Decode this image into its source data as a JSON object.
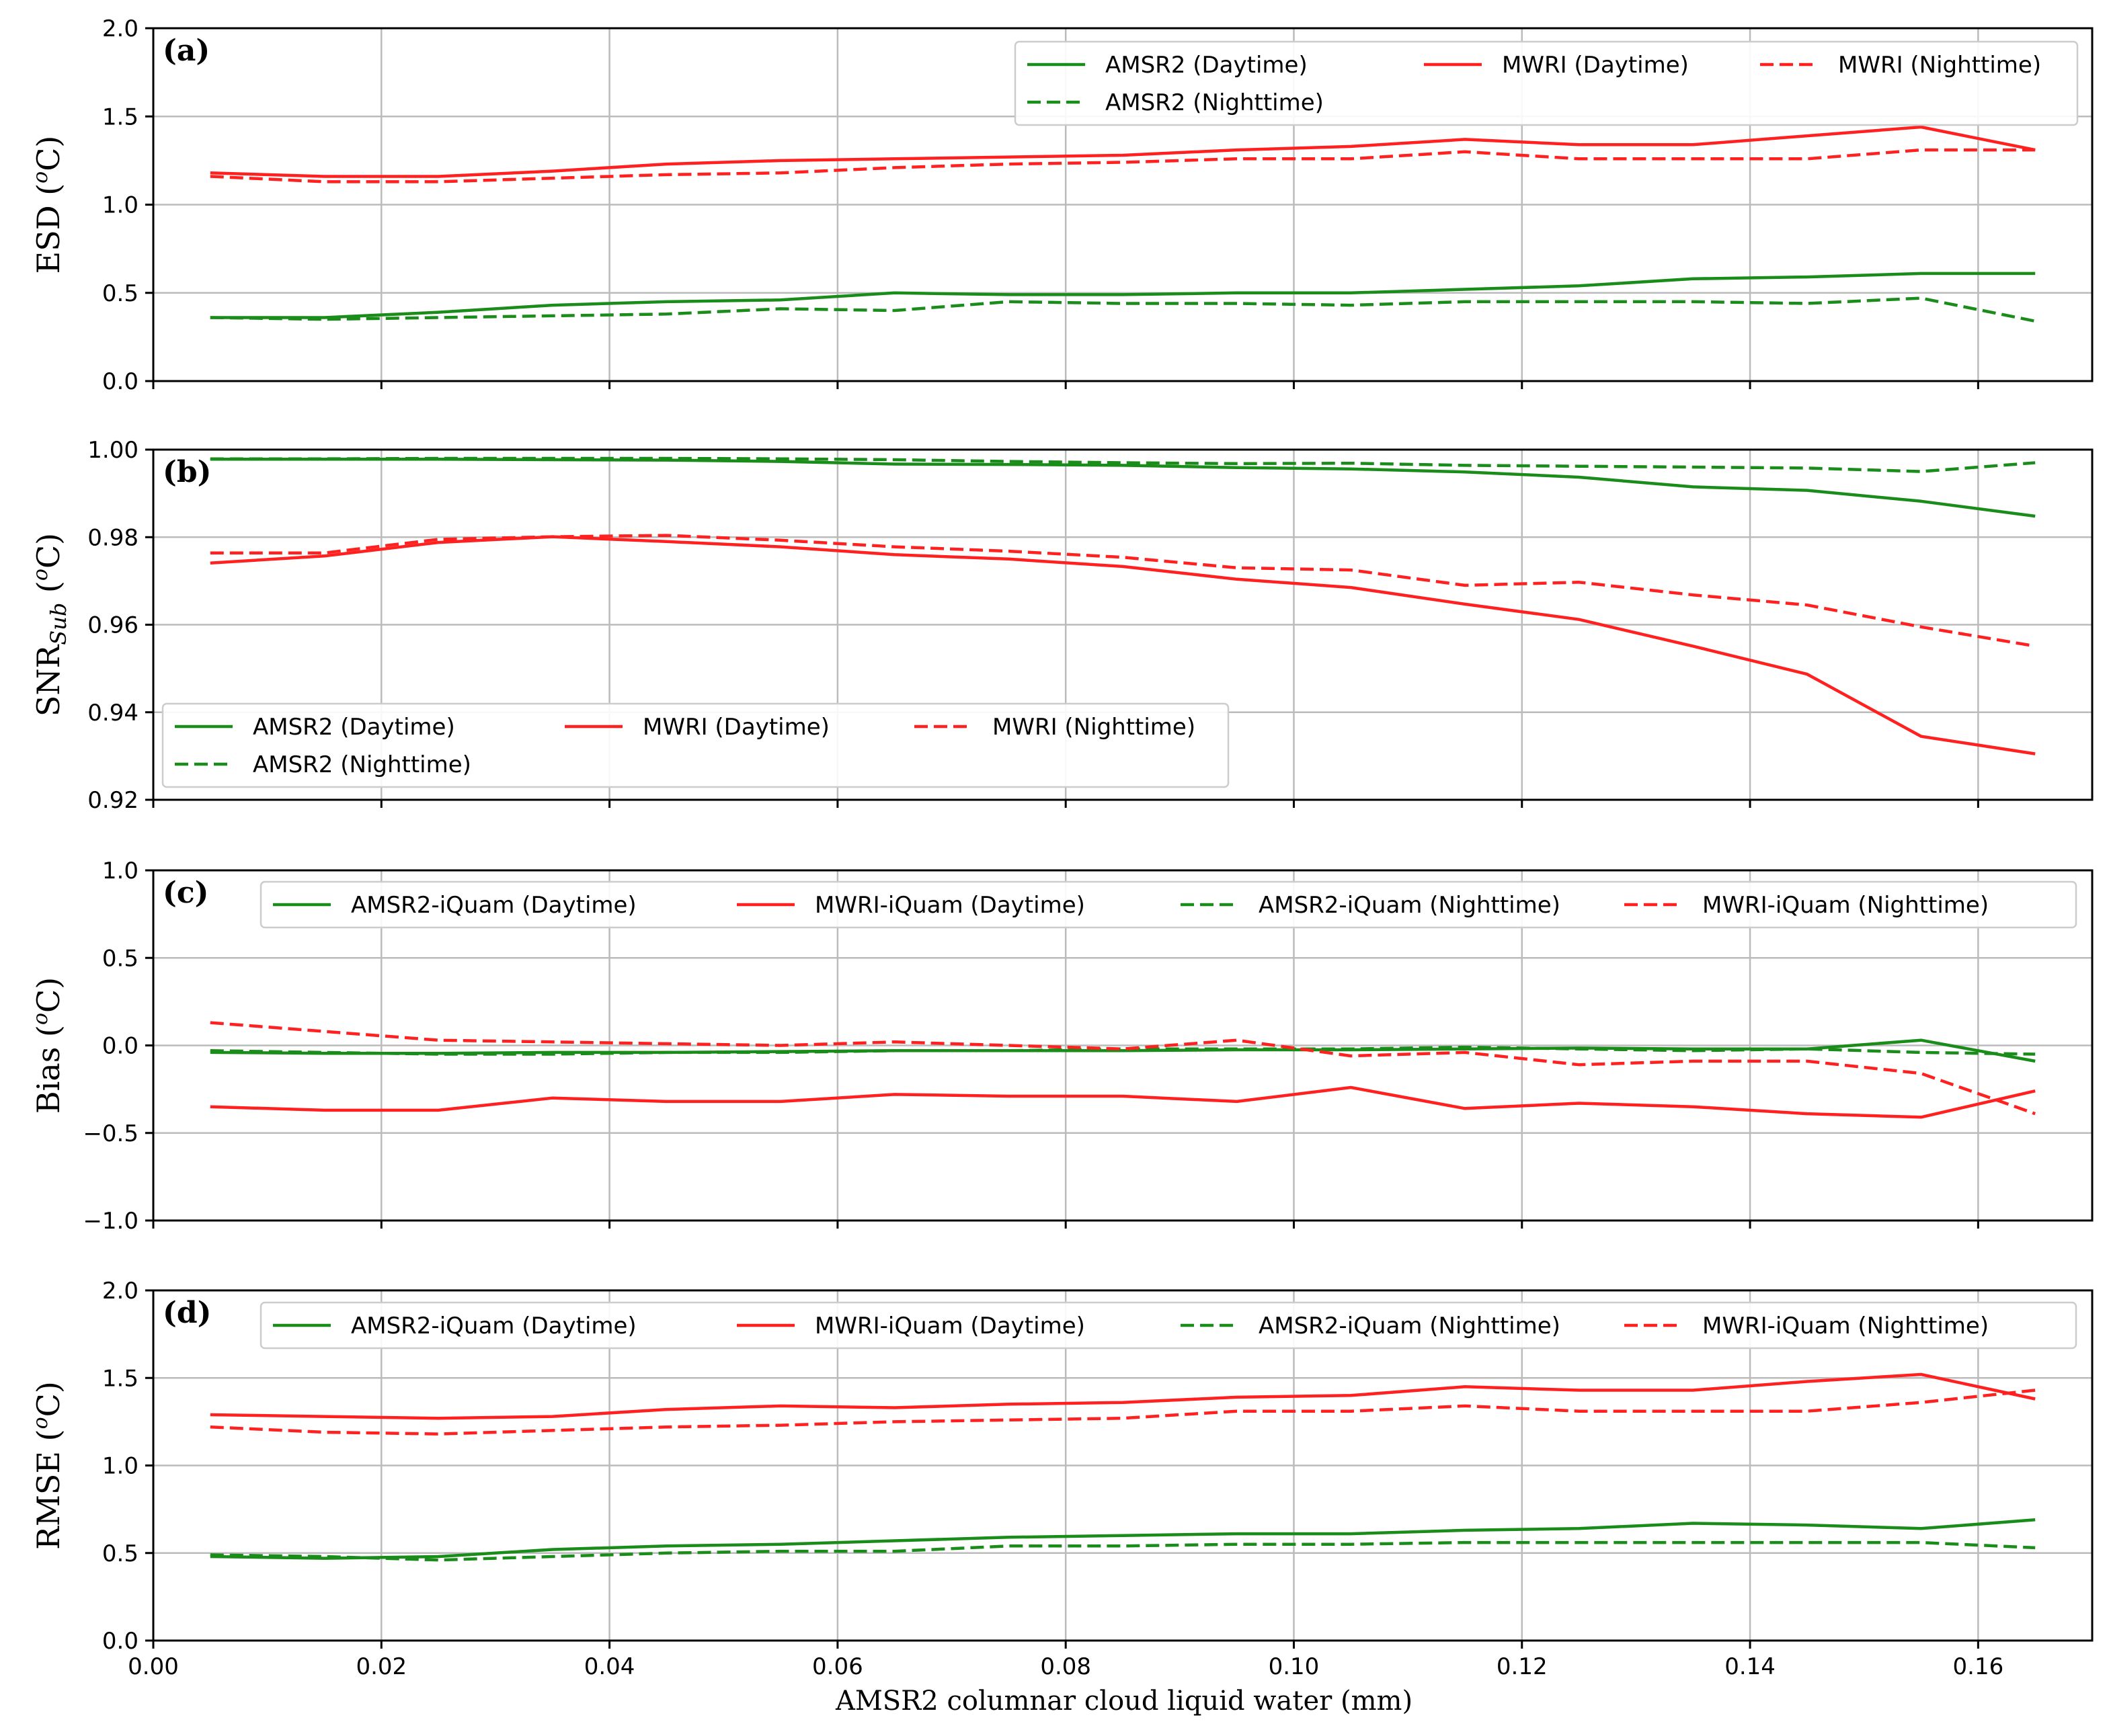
{
  "figure": {
    "xlabel": "AMSR2 columnar cloud liquid water (mm)"
  },
  "colors": {
    "green": "#1a8c1a",
    "red": "#ff2020"
  },
  "chart_data": [
    {
      "type": "line",
      "panel_label": "(a)",
      "ylabel_main": "ESD (",
      "ylabel_sup": "o",
      "ylabel_tail": "C)",
      "ylabel_sub": "",
      "xlim": [
        0.0,
        0.17
      ],
      "ylim": [
        0.0,
        2.0
      ],
      "x_ticks": [
        "0.00",
        "0.02",
        "0.04",
        "0.06",
        "0.08",
        "0.10",
        "0.12",
        "0.14",
        "0.16"
      ],
      "y_ticks": [
        0.0,
        0.5,
        1.0,
        1.5,
        2.0
      ],
      "y_tick_labels": [
        "0.0",
        "0.5",
        "1.0",
        "1.5",
        "2.0"
      ],
      "legend_position": "top-right",
      "legend_cols": 3,
      "legend_order": [
        0,
        2,
        3,
        1
      ],
      "x": [
        0.005,
        0.015,
        0.025,
        0.035,
        0.045,
        0.055,
        0.065,
        0.075,
        0.085,
        0.095,
        0.105,
        0.115,
        0.125,
        0.135,
        0.145,
        0.155,
        0.165
      ],
      "series": [
        {
          "name": "AMSR2 (Daytime)",
          "color": "green",
          "dash": false,
          "values": [
            0.36,
            0.36,
            0.39,
            0.43,
            0.45,
            0.46,
            0.5,
            0.49,
            0.49,
            0.5,
            0.5,
            0.52,
            0.54,
            0.58,
            0.59,
            0.61,
            0.61
          ]
        },
        {
          "name": "AMSR2 (Nighttime)",
          "color": "green",
          "dash": true,
          "values": [
            0.36,
            0.35,
            0.36,
            0.37,
            0.38,
            0.41,
            0.4,
            0.45,
            0.44,
            0.44,
            0.43,
            0.45,
            0.45,
            0.45,
            0.44,
            0.47,
            0.34
          ]
        },
        {
          "name": "MWRI (Daytime)",
          "color": "red",
          "dash": false,
          "values": [
            1.18,
            1.16,
            1.16,
            1.19,
            1.23,
            1.25,
            1.26,
            1.27,
            1.28,
            1.31,
            1.33,
            1.37,
            1.34,
            1.34,
            1.39,
            1.44,
            1.31
          ]
        },
        {
          "name": "MWRI (Nighttime)",
          "color": "red",
          "dash": true,
          "values": [
            1.16,
            1.13,
            1.13,
            1.15,
            1.17,
            1.18,
            1.21,
            1.23,
            1.24,
            1.26,
            1.26,
            1.3,
            1.26,
            1.26,
            1.26,
            1.31,
            1.31
          ]
        }
      ]
    },
    {
      "type": "line",
      "panel_label": "(b)",
      "ylabel_main": "SNR",
      "ylabel_sub": "Sub",
      "ylabel_pre": " (",
      "ylabel_sup": "o",
      "ylabel_tail": "C)",
      "xlim": [
        0.0,
        0.17
      ],
      "ylim": [
        0.92,
        1.0
      ],
      "x_ticks": [
        "0.00",
        "0.02",
        "0.04",
        "0.06",
        "0.08",
        "0.10",
        "0.12",
        "0.14",
        "0.16"
      ],
      "y_ticks": [
        0.92,
        0.94,
        0.96,
        0.98,
        1.0
      ],
      "y_tick_labels": [
        "0.92",
        "0.94",
        "0.96",
        "0.98",
        "1.00"
      ],
      "legend_position": "bottom-left",
      "legend_cols": 3,
      "legend_order": [
        0,
        2,
        3,
        1
      ],
      "x": [
        0.005,
        0.015,
        0.025,
        0.035,
        0.045,
        0.055,
        0.065,
        0.075,
        0.085,
        0.095,
        0.105,
        0.115,
        0.125,
        0.135,
        0.145,
        0.155,
        0.165
      ],
      "series": [
        {
          "name": "AMSR2 (Daytime)",
          "color": "green",
          "dash": false,
          "values": [
            0.9978,
            0.9978,
            0.9978,
            0.9977,
            0.9976,
            0.9973,
            0.9967,
            0.9966,
            0.9964,
            0.9959,
            0.9956,
            0.9949,
            0.9937,
            0.9915,
            0.9907,
            0.9882,
            0.9848
          ]
        },
        {
          "name": "AMSR2 (Nighttime)",
          "color": "green",
          "dash": true,
          "values": [
            0.9979,
            0.9979,
            0.998,
            0.998,
            0.998,
            0.9979,
            0.9977,
            0.9973,
            0.997,
            0.9968,
            0.9969,
            0.9964,
            0.9962,
            0.996,
            0.9958,
            0.995,
            0.997
          ]
        },
        {
          "name": "MWRI (Daytime)",
          "color": "red",
          "dash": false,
          "values": [
            0.9741,
            0.9757,
            0.9788,
            0.9801,
            0.979,
            0.9778,
            0.976,
            0.975,
            0.9733,
            0.9704,
            0.9685,
            0.9647,
            0.9612,
            0.9551,
            0.9487,
            0.9345,
            0.9305
          ]
        },
        {
          "name": "MWRI (Nighttime)",
          "color": "red",
          "dash": true,
          "values": [
            0.9764,
            0.9764,
            0.9795,
            0.9801,
            0.9804,
            0.9793,
            0.9778,
            0.9768,
            0.9754,
            0.973,
            0.9725,
            0.969,
            0.9697,
            0.9668,
            0.9645,
            0.9595,
            0.9551
          ]
        }
      ]
    },
    {
      "type": "line",
      "panel_label": "(c)",
      "ylabel_main": "Bias (",
      "ylabel_sup": "o",
      "ylabel_tail": "C)",
      "ylabel_sub": "",
      "xlim": [
        0.0,
        0.17
      ],
      "ylim": [
        -1.0,
        1.0
      ],
      "x_ticks": [
        "0.00",
        "0.02",
        "0.04",
        "0.06",
        "0.08",
        "0.10",
        "0.12",
        "0.14",
        "0.16"
      ],
      "y_ticks": [
        -1.0,
        -0.5,
        0.0,
        0.5,
        1.0
      ],
      "y_tick_labels": [
        "−1.0",
        "−0.5",
        "0.0",
        "0.5",
        "1.0"
      ],
      "legend_position": "top-right",
      "legend_cols": 4,
      "legend_order": [
        0,
        2,
        1,
        3
      ],
      "x": [
        0.005,
        0.015,
        0.025,
        0.035,
        0.045,
        0.055,
        0.065,
        0.075,
        0.085,
        0.095,
        0.105,
        0.115,
        0.125,
        0.135,
        0.145,
        0.155,
        0.165
      ],
      "series": [
        {
          "name": "AMSR2-iQuam (Daytime)",
          "color": "green",
          "dash": false,
          "values": [
            -0.04,
            -0.045,
            -0.045,
            -0.04,
            -0.04,
            -0.035,
            -0.03,
            -0.03,
            -0.03,
            -0.025,
            -0.025,
            -0.02,
            -0.015,
            -0.02,
            -0.02,
            0.03,
            -0.09
          ]
        },
        {
          "name": "AMSR2-iQuam (Nighttime)",
          "color": "green",
          "dash": true,
          "values": [
            -0.03,
            -0.04,
            -0.05,
            -0.05,
            -0.04,
            -0.04,
            -0.03,
            -0.03,
            -0.02,
            -0.02,
            -0.02,
            -0.01,
            -0.02,
            -0.03,
            -0.02,
            -0.04,
            -0.05
          ]
        },
        {
          "name": "MWRI-iQuam (Daytime)",
          "color": "red",
          "dash": false,
          "values": [
            -0.35,
            -0.37,
            -0.37,
            -0.3,
            -0.32,
            -0.32,
            -0.28,
            -0.29,
            -0.29,
            -0.32,
            -0.24,
            -0.36,
            -0.33,
            -0.35,
            -0.39,
            -0.41,
            -0.26
          ]
        },
        {
          "name": "MWRI-iQuam (Nighttime)",
          "color": "red",
          "dash": true,
          "values": [
            0.13,
            0.08,
            0.03,
            0.02,
            0.01,
            0.0,
            0.02,
            0.0,
            -0.02,
            0.03,
            -0.06,
            -0.04,
            -0.11,
            -0.09,
            -0.09,
            -0.16,
            -0.39
          ]
        }
      ]
    },
    {
      "type": "line",
      "panel_label": "(d)",
      "ylabel_main": "RMSE (",
      "ylabel_sup": "o",
      "ylabel_tail": "C)",
      "ylabel_sub": "",
      "xlim": [
        0.0,
        0.17
      ],
      "ylim": [
        0.0,
        2.0
      ],
      "x_ticks": [
        "0.00",
        "0.02",
        "0.04",
        "0.06",
        "0.08",
        "0.10",
        "0.12",
        "0.14",
        "0.16"
      ],
      "y_ticks": [
        0.0,
        0.5,
        1.0,
        1.5,
        2.0
      ],
      "y_tick_labels": [
        "0.0",
        "0.5",
        "1.0",
        "1.5",
        "2.0"
      ],
      "legend_position": "top-right",
      "legend_cols": 4,
      "legend_order": [
        0,
        2,
        1,
        3
      ],
      "x": [
        0.005,
        0.015,
        0.025,
        0.035,
        0.045,
        0.055,
        0.065,
        0.075,
        0.085,
        0.095,
        0.105,
        0.115,
        0.125,
        0.135,
        0.145,
        0.155,
        0.165
      ],
      "series": [
        {
          "name": "AMSR2-iQuam (Daytime)",
          "color": "green",
          "dash": false,
          "values": [
            0.48,
            0.47,
            0.48,
            0.52,
            0.54,
            0.55,
            0.57,
            0.59,
            0.6,
            0.61,
            0.61,
            0.63,
            0.64,
            0.67,
            0.66,
            0.64,
            0.69
          ]
        },
        {
          "name": "AMSR2-iQuam (Nighttime)",
          "color": "green",
          "dash": true,
          "values": [
            0.49,
            0.48,
            0.46,
            0.48,
            0.5,
            0.51,
            0.51,
            0.54,
            0.54,
            0.55,
            0.55,
            0.56,
            0.56,
            0.56,
            0.56,
            0.56,
            0.53
          ]
        },
        {
          "name": "MWRI-iQuam (Daytime)",
          "color": "red",
          "dash": false,
          "values": [
            1.29,
            1.28,
            1.27,
            1.28,
            1.32,
            1.34,
            1.33,
            1.35,
            1.36,
            1.39,
            1.4,
            1.45,
            1.43,
            1.43,
            1.48,
            1.52,
            1.38
          ]
        },
        {
          "name": "MWRI-iQuam (Nighttime)",
          "color": "red",
          "dash": true,
          "values": [
            1.22,
            1.19,
            1.18,
            1.2,
            1.22,
            1.23,
            1.25,
            1.26,
            1.27,
            1.31,
            1.31,
            1.34,
            1.31,
            1.31,
            1.31,
            1.36,
            1.43
          ]
        }
      ]
    }
  ]
}
